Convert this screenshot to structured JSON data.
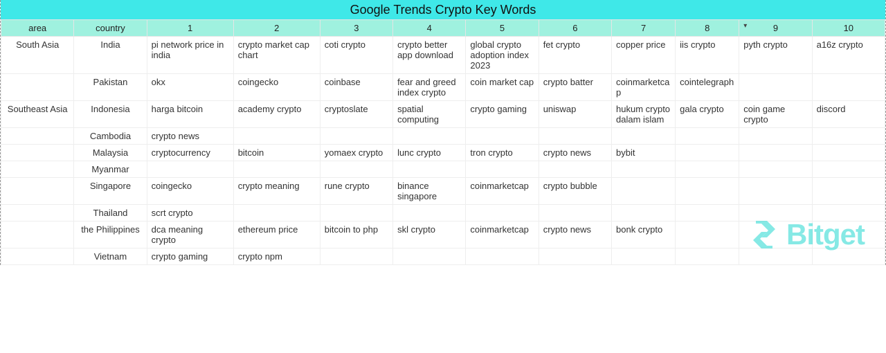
{
  "title": "Google Trends Crypto Key Words",
  "watermark_text": "Bitget",
  "colors": {
    "title_bg": "#3fe8e8",
    "header_bg": "#9ff1df",
    "border": "#eeeeee",
    "watermark": "#25d8d0"
  },
  "typography": {
    "body_fontsize": 13,
    "title_fontsize": 18,
    "watermark_fontsize": 42,
    "watermark_weight": 700
  },
  "columns": [
    "area",
    "country",
    "1",
    "2",
    "3",
    "4",
    "5",
    "6",
    "7",
    "8",
    "9",
    "10"
  ],
  "sorted_column_index": 10,
  "rows": [
    {
      "area": "South Asia",
      "country": "India",
      "k": [
        "pi network price in india",
        "crypto market cap chart",
        "coti crypto",
        "crypto better app download",
        "global crypto adoption index 2023",
        "fet crypto",
        "copper price",
        "iis crypto",
        "pyth crypto",
        "a16z crypto"
      ]
    },
    {
      "area": "",
      "country": "Pakistan",
      "k": [
        "okx",
        "coingecko",
        "coinbase",
        "fear and greed index crypto",
        "coin market cap",
        "crypto batter",
        "coinmarketcap",
        "cointelegraph",
        "",
        ""
      ]
    },
    {
      "area": "Southeast Asia",
      "country": "Indonesia",
      "k": [
        "harga bitcoin",
        "academy crypto",
        "cryptoslate",
        "spatial computing",
        "crypto gaming",
        "uniswap",
        "hukum crypto dalam islam",
        "gala crypto",
        "coin game crypto",
        "discord"
      ]
    },
    {
      "area": "",
      "country": "Cambodia",
      "k": [
        "crypto news",
        "",
        "",
        "",
        "",
        "",
        "",
        "",
        "",
        ""
      ]
    },
    {
      "area": "",
      "country": "Malaysia",
      "k": [
        "cryptocurrency",
        "bitcoin",
        "yomaex crypto",
        "lunc crypto",
        "tron crypto",
        "crypto news",
        "bybit",
        "",
        "",
        ""
      ]
    },
    {
      "area": "",
      "country": "Myanmar",
      "k": [
        "",
        "",
        "",
        "",
        "",
        "",
        "",
        "",
        "",
        ""
      ]
    },
    {
      "area": "",
      "country": "Singapore",
      "k": [
        "coingecko",
        "crypto meaning",
        "rune crypto",
        "binance singapore",
        "coinmarketcap",
        "crypto bubble",
        "",
        "",
        "",
        ""
      ]
    },
    {
      "area": "",
      "country": "Thailand",
      "k": [
        "scrt crypto",
        "",
        "",
        "",
        "",
        "",
        "",
        "",
        "",
        ""
      ]
    },
    {
      "area": "",
      "country": "the Philippines",
      "k": [
        "dca meaning crypto",
        "ethereum price",
        "bitcoin to php",
        "skl crypto",
        "coinmarketcap",
        "crypto news",
        "bonk crypto",
        "",
        "",
        ""
      ]
    },
    {
      "area": "",
      "country": "Vietnam",
      "k": [
        "crypto gaming",
        "crypto npm",
        "",
        "",
        "",
        "",
        "",
        "",
        "",
        ""
      ]
    }
  ]
}
